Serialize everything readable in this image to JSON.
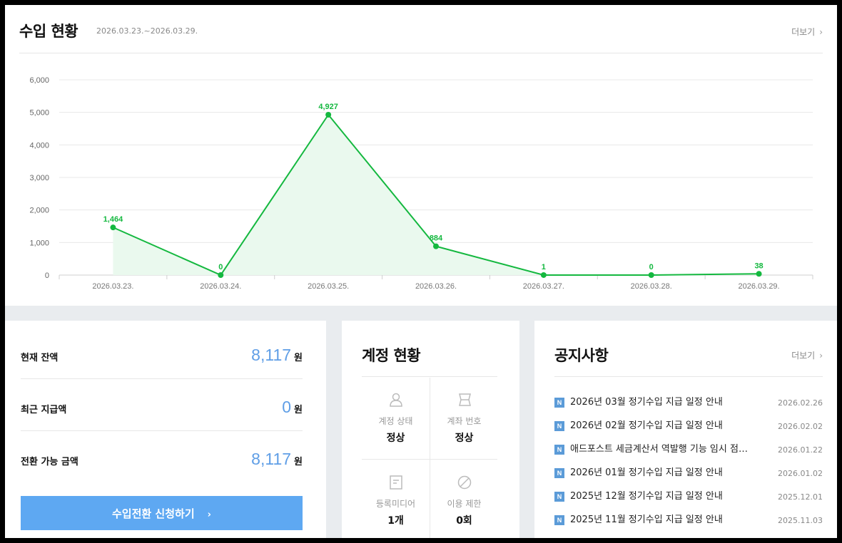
{
  "revenue": {
    "title": "수입 현황",
    "period": "2026.03.23.~2026.03.29.",
    "more_label": "더보기"
  },
  "chart_data": {
    "type": "area",
    "categories": [
      "2026.03.23.",
      "2026.03.24.",
      "2026.03.25.",
      "2026.03.26.",
      "2026.03.27.",
      "2026.03.28.",
      "2026.03.29."
    ],
    "values": [
      1464,
      0,
      4927,
      884,
      1,
      0,
      38
    ],
    "data_labels": [
      "1,464",
      "0",
      "4,927",
      "884",
      "1",
      "0",
      "38"
    ],
    "yticks": [
      0,
      1000,
      2000,
      3000,
      4000,
      5000,
      6000
    ],
    "ytick_labels": [
      "0",
      "1,000",
      "2,000",
      "3,000",
      "4,000",
      "5,000",
      "6,000"
    ],
    "ylim": [
      0,
      6000
    ],
    "grid": true,
    "line_color": "#14b83f",
    "fill_color": "#eaf9ee"
  },
  "balance": {
    "rows": [
      {
        "label": "현재 잔액",
        "value": "8,117",
        "unit": "원"
      },
      {
        "label": "최근 지급액",
        "value": "0",
        "unit": "원"
      },
      {
        "label": "전환 가능 금액",
        "value": "8,117",
        "unit": "원"
      }
    ],
    "button_label": "수입전환 신청하기"
  },
  "account": {
    "title": "계정 현황",
    "cells": [
      {
        "icon": "user-icon",
        "label": "계정 상태",
        "value": "정상"
      },
      {
        "icon": "card-icon",
        "label": "계좌 번호",
        "value": "정상"
      },
      {
        "icon": "document-icon",
        "label": "등록미디어",
        "value": "1개"
      },
      {
        "icon": "prohibited-icon",
        "label": "이용 제한",
        "value": "0회"
      }
    ]
  },
  "notice": {
    "title": "공지사항",
    "more_label": "더보기",
    "badge": "N",
    "items": [
      {
        "text": "2026년 03월 정기수입 지급 일정 안내",
        "date": "2026.02.26"
      },
      {
        "text": "2026년 02월 정기수입 지급 일정 안내",
        "date": "2026.02.02"
      },
      {
        "text": "애드포스트 세금계산서 역발행 기능 임시 점…",
        "date": "2026.01.22"
      },
      {
        "text": "2026년 01월 정기수입 지급 일정 안내",
        "date": "2026.01.02"
      },
      {
        "text": "2025년 12월 정기수입 지급 일정 안내",
        "date": "2025.12.01"
      },
      {
        "text": "2025년 11월 정기수입 지급 일정 안내",
        "date": "2025.11.03"
      }
    ]
  },
  "colors": {
    "accent_blue": "#5ea8f2",
    "balance_number": "#5f9ee6",
    "notice_badge": "#5b9bd8"
  }
}
